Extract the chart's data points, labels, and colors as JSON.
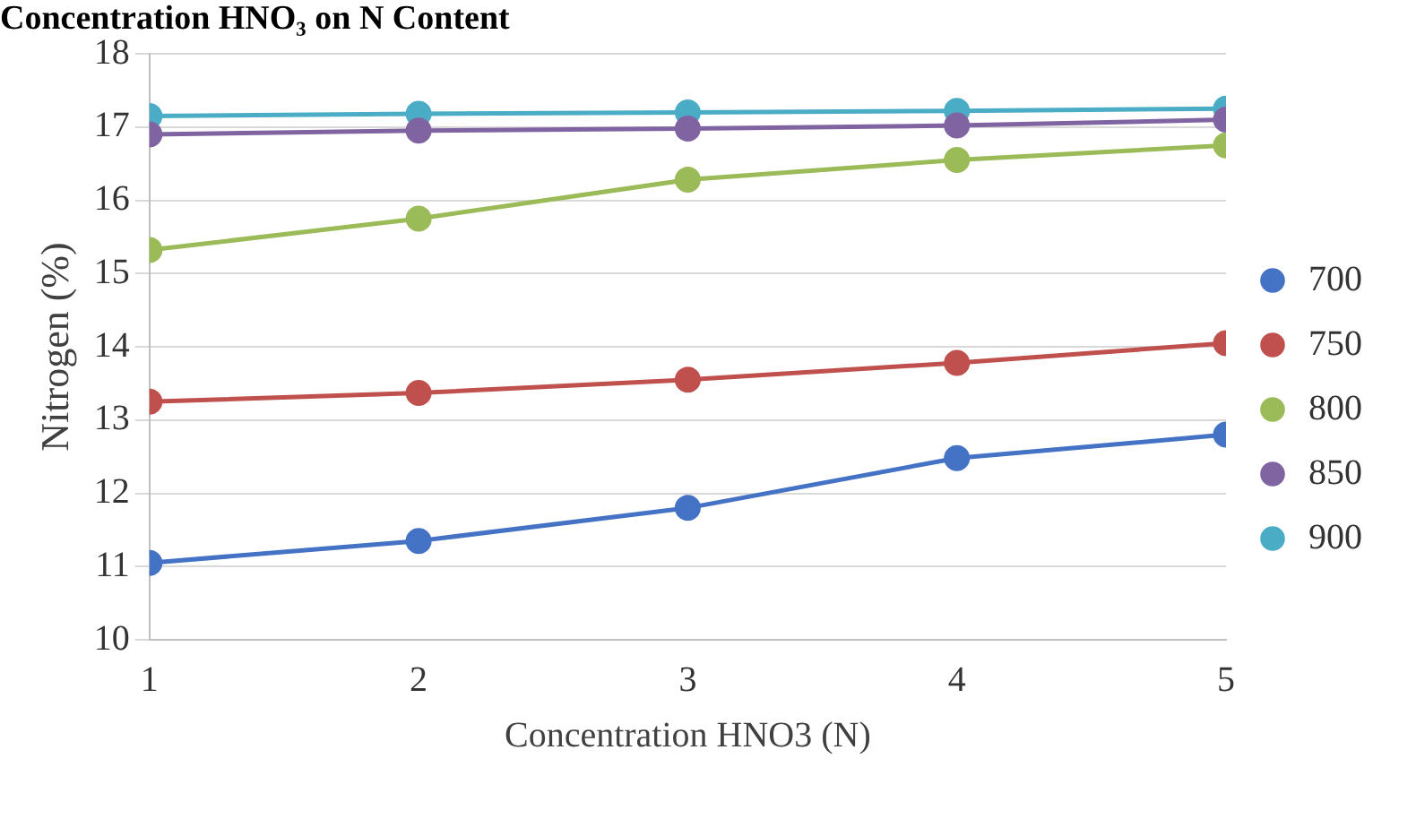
{
  "chart_data": {
    "type": "line",
    "title": "Concentration HNO₃ on N Content",
    "xlabel": "Concentration HNO3 (N)",
    "ylabel": "Nitrogen (%)",
    "x": [
      1,
      2,
      3,
      4,
      5
    ],
    "xlim": [
      1,
      5
    ],
    "xticks": [
      1,
      2,
      3,
      4,
      5
    ],
    "ylim": [
      10,
      18
    ],
    "yticks": [
      10,
      11,
      12,
      13,
      14,
      15,
      16,
      17,
      18
    ],
    "grid": "y",
    "legend": "right",
    "marker": "circle",
    "line_style": "solid",
    "series": [
      {
        "name": "700",
        "color": "#4472c4",
        "values": [
          11.05,
          11.35,
          11.8,
          12.48,
          12.8
        ]
      },
      {
        "name": "750",
        "color": "#c0504d",
        "values": [
          13.25,
          13.37,
          13.55,
          13.78,
          14.05
        ]
      },
      {
        "name": "800",
        "color": "#9bbb59",
        "values": [
          15.32,
          15.75,
          16.28,
          16.55,
          16.75
        ]
      },
      {
        "name": "850",
        "color": "#8064a2",
        "values": [
          16.9,
          16.95,
          16.98,
          17.02,
          17.1
        ]
      },
      {
        "name": "900",
        "color": "#4bacc6",
        "values": [
          17.15,
          17.18,
          17.2,
          17.22,
          17.25
        ]
      }
    ]
  }
}
